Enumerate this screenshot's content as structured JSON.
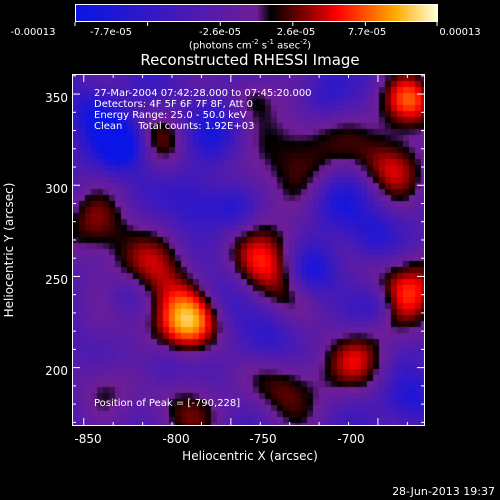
{
  "colorbar": {
    "tick_labels": [
      "-0.00013",
      "-7.7e-05",
      "-2.6e-05",
      "2.6e-05",
      "7.7e-05",
      "0.00013"
    ],
    "units": "(photons cm",
    "units_exp1": "-2",
    "units_mid": " s",
    "units_exp2": "-1",
    "units_end": " asec",
    "units_exp3": "-2",
    "units_close": ")"
  },
  "plot": {
    "title": "Reconstructed RHESSI Image",
    "annotations": [
      "27-Mar-2004 07:42:28.000 to 07:45:20.000",
      "Detectors: 4F 5F 6F 7F 8F, Att 0",
      "Energy Range: 25.0 - 50.0 keV",
      "Clean     Total counts: 1.92E+03"
    ],
    "peak_label": "Position of Peak = [-790,228]",
    "x_axis": {
      "title": "Heliocentric X (arcsec)",
      "ticks": [
        "-850",
        "-800",
        "-750",
        "-700"
      ],
      "range": [
        -854,
        -734
      ]
    },
    "y_axis": {
      "title": "Heliocentric Y (arcsec)",
      "ticks": [
        "200",
        "250",
        "300",
        "350"
      ],
      "range": [
        168,
        361
      ]
    }
  },
  "footer": {
    "date": "28-Jun-2013 19:37"
  }
}
